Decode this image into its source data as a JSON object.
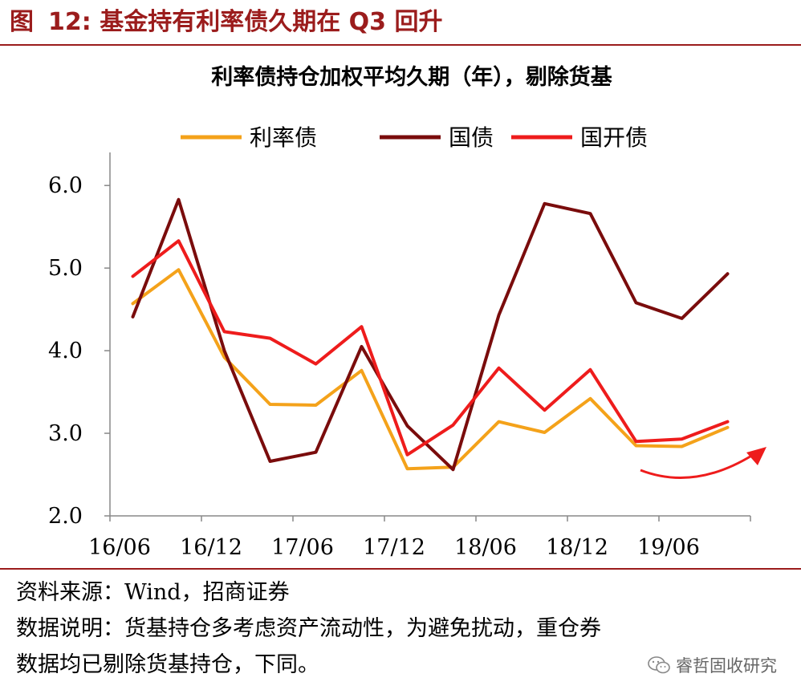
{
  "figure": {
    "label": "图",
    "number": "12:",
    "heading": "基金持有利率债久期在 Q3 回升"
  },
  "notes": {
    "source": "资料来源：Wind，招商证券",
    "desc_line1": "数据说明：货基持仓多考虑资产流动性，为避免扰动，重仓券",
    "desc_line2": "数据均已剔除货基持仓，下同。"
  },
  "watermark": {
    "icon": "wechat-icon",
    "text": "睿哲固收研究"
  },
  "colors": {
    "title": "#9b1c1c",
    "rule": "#9b1c1c",
    "series": [
      "#f4a21a",
      "#7a0c0c",
      "#ee1c1c"
    ],
    "arrow": "#ee1c1c"
  },
  "chart_data": {
    "type": "line",
    "title": "利率债持仓加权平均久期（年），剔除货基",
    "x": [
      "2016Q2",
      "2016Q3",
      "2016Q4",
      "2017Q1",
      "2017Q2",
      "2017Q3",
      "2017Q4",
      "2018Q1",
      "2018Q2",
      "2018Q3",
      "2018Q4",
      "2019Q1",
      "2019Q2",
      "2019Q3"
    ],
    "xticks": [
      "16/06",
      "16/12",
      "17/06",
      "17/12",
      "18/06",
      "18/12",
      "19/06"
    ],
    "ylim": [
      2.0,
      6.0
    ],
    "yticks": [
      "2.0",
      "3.0",
      "4.0",
      "5.0",
      "6.0"
    ],
    "grid": false,
    "legend": "top",
    "series": [
      {
        "name": "利率债",
        "values": [
          4.57,
          4.98,
          3.92,
          3.35,
          3.34,
          3.76,
          2.57,
          2.59,
          3.14,
          3.01,
          3.42,
          2.85,
          2.84,
          3.07
        ]
      },
      {
        "name": "国债",
        "values": [
          4.41,
          5.83,
          4.0,
          2.66,
          2.77,
          4.05,
          3.09,
          2.56,
          4.43,
          5.78,
          5.66,
          4.58,
          4.39,
          4.93
        ]
      },
      {
        "name": "国开债",
        "values": [
          4.9,
          5.33,
          4.23,
          4.15,
          3.84,
          4.29,
          2.74,
          3.1,
          3.79,
          3.28,
          3.77,
          2.9,
          2.93,
          3.14
        ]
      }
    ],
    "annotation": "upward-arrow"
  }
}
